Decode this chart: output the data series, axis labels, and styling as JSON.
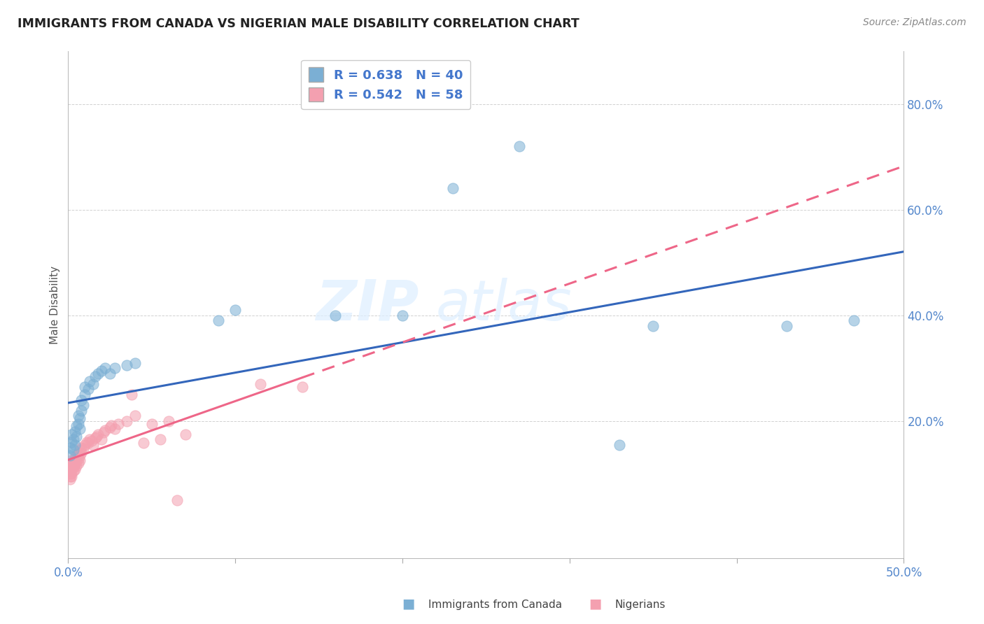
{
  "title": "IMMIGRANTS FROM CANADA VS NIGERIAN MALE DISABILITY CORRELATION CHART",
  "source": "Source: ZipAtlas.com",
  "xlabel": "",
  "ylabel": "Male Disability",
  "xlim": [
    0.0,
    0.5
  ],
  "ylim": [
    -0.06,
    0.9
  ],
  "xticks": [
    0.0,
    0.1,
    0.2,
    0.3,
    0.4,
    0.5
  ],
  "yticks": [
    0.2,
    0.4,
    0.6,
    0.8
  ],
  "ytick_labels": [
    "20.0%",
    "40.0%",
    "60.0%",
    "80.0%"
  ],
  "xtick_labels": [
    "0.0%",
    "",
    "",
    "",
    "",
    "50.0%"
  ],
  "blue_R": 0.638,
  "blue_N": 40,
  "pink_R": 0.542,
  "pink_N": 58,
  "blue_color": "#7BAFD4",
  "pink_color": "#F4A0B0",
  "blue_line_color": "#3366BB",
  "pink_line_color": "#EE6688",
  "blue_scatter": [
    [
      0.001,
      0.135
    ],
    [
      0.001,
      0.15
    ],
    [
      0.002,
      0.16
    ],
    [
      0.002,
      0.175
    ],
    [
      0.003,
      0.145
    ],
    [
      0.003,
      0.165
    ],
    [
      0.004,
      0.155
    ],
    [
      0.004,
      0.18
    ],
    [
      0.005,
      0.17
    ],
    [
      0.005,
      0.19
    ],
    [
      0.006,
      0.195
    ],
    [
      0.006,
      0.21
    ],
    [
      0.007,
      0.185
    ],
    [
      0.007,
      0.205
    ],
    [
      0.008,
      0.22
    ],
    [
      0.008,
      0.24
    ],
    [
      0.009,
      0.23
    ],
    [
      0.01,
      0.25
    ],
    [
      0.01,
      0.265
    ],
    [
      0.012,
      0.26
    ],
    [
      0.013,
      0.275
    ],
    [
      0.015,
      0.27
    ],
    [
      0.016,
      0.285
    ],
    [
      0.018,
      0.29
    ],
    [
      0.02,
      0.295
    ],
    [
      0.022,
      0.3
    ],
    [
      0.025,
      0.29
    ],
    [
      0.028,
      0.3
    ],
    [
      0.035,
      0.305
    ],
    [
      0.04,
      0.31
    ],
    [
      0.09,
      0.39
    ],
    [
      0.1,
      0.41
    ],
    [
      0.16,
      0.4
    ],
    [
      0.2,
      0.4
    ],
    [
      0.23,
      0.64
    ],
    [
      0.27,
      0.72
    ],
    [
      0.33,
      0.155
    ],
    [
      0.35,
      0.38
    ],
    [
      0.43,
      0.38
    ],
    [
      0.47,
      0.39
    ]
  ],
  "pink_scatter": [
    [
      0.001,
      0.11
    ],
    [
      0.001,
      0.105
    ],
    [
      0.001,
      0.12
    ],
    [
      0.001,
      0.115
    ],
    [
      0.001,
      0.095
    ],
    [
      0.001,
      0.1
    ],
    [
      0.001,
      0.09
    ],
    [
      0.002,
      0.108
    ],
    [
      0.002,
      0.118
    ],
    [
      0.002,
      0.1
    ],
    [
      0.002,
      0.115
    ],
    [
      0.002,
      0.095
    ],
    [
      0.002,
      0.125
    ],
    [
      0.003,
      0.112
    ],
    [
      0.003,
      0.12
    ],
    [
      0.003,
      0.105
    ],
    [
      0.004,
      0.118
    ],
    [
      0.004,
      0.13
    ],
    [
      0.004,
      0.108
    ],
    [
      0.005,
      0.125
    ],
    [
      0.005,
      0.115
    ],
    [
      0.005,
      0.135
    ],
    [
      0.006,
      0.128
    ],
    [
      0.006,
      0.138
    ],
    [
      0.006,
      0.12
    ],
    [
      0.007,
      0.135
    ],
    [
      0.007,
      0.125
    ],
    [
      0.007,
      0.145
    ],
    [
      0.008,
      0.14
    ],
    [
      0.008,
      0.15
    ],
    [
      0.009,
      0.148
    ],
    [
      0.01,
      0.155
    ],
    [
      0.011,
      0.16
    ],
    [
      0.012,
      0.158
    ],
    [
      0.013,
      0.165
    ],
    [
      0.014,
      0.162
    ],
    [
      0.015,
      0.155
    ],
    [
      0.016,
      0.168
    ],
    [
      0.017,
      0.17
    ],
    [
      0.018,
      0.175
    ],
    [
      0.02,
      0.165
    ],
    [
      0.021,
      0.178
    ],
    [
      0.022,
      0.182
    ],
    [
      0.025,
      0.188
    ],
    [
      0.026,
      0.192
    ],
    [
      0.028,
      0.185
    ],
    [
      0.03,
      0.195
    ],
    [
      0.035,
      0.2
    ],
    [
      0.038,
      0.25
    ],
    [
      0.04,
      0.21
    ],
    [
      0.045,
      0.158
    ],
    [
      0.05,
      0.195
    ],
    [
      0.055,
      0.165
    ],
    [
      0.06,
      0.2
    ],
    [
      0.065,
      0.05
    ],
    [
      0.07,
      0.175
    ],
    [
      0.115,
      0.27
    ],
    [
      0.14,
      0.265
    ]
  ],
  "watermark_text": "ZIP",
  "watermark_text2": "atlas",
  "background_color": "#FFFFFF",
  "grid_color": "#CCCCCC"
}
